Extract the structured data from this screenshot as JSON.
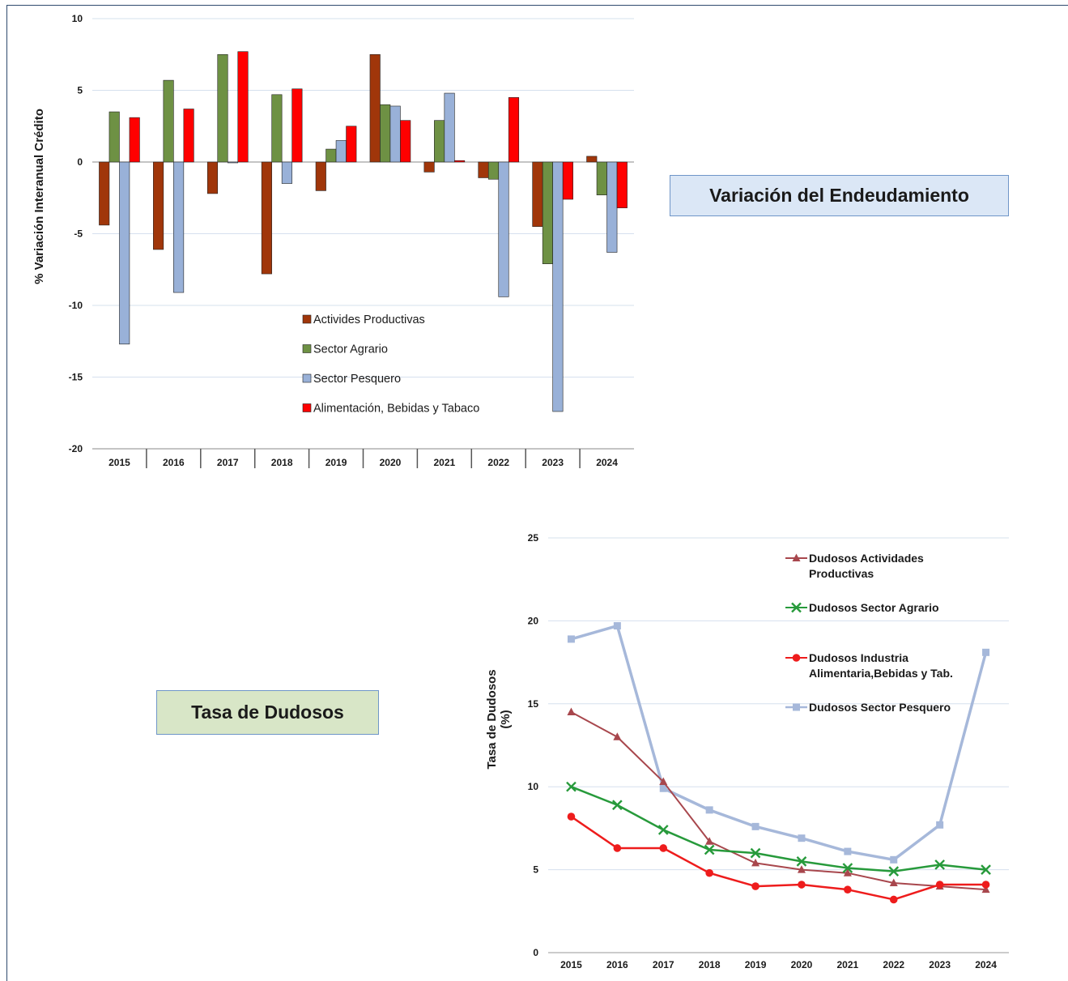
{
  "boxes": {
    "endeudamiento": "Variación del Endeudamiento",
    "dudosos": "Tasa de Dudosos"
  },
  "colors": {
    "actividades": "#a0360a",
    "agrario": "#6e9144",
    "pesquero": "#99b1d8",
    "alimentacion": "#ff0000",
    "dud_actividades": "#a8474d",
    "dud_agrario": "#279a3b",
    "dud_alimentaria": "#ee1c1c",
    "dud_pesquero": "#a6b8da",
    "grid": "#d6e0ee",
    "box_endeu_fill": "#dbe7f6",
    "box_dudosos_fill": "#d8e6c7"
  },
  "chart_data": [
    {
      "type": "bar",
      "title": "",
      "ylabel": "% Variación Interanual Crédito",
      "xlabel": "",
      "categories": [
        "2015",
        "2016",
        "2017",
        "2018",
        "2019",
        "2020",
        "2021",
        "2022",
        "2023",
        "2024"
      ],
      "ylim": [
        -20,
        10
      ],
      "yticks": [
        10,
        5,
        0,
        -5,
        -10,
        -15,
        -20
      ],
      "grid": true,
      "legend_position": "bottom-center",
      "series": [
        {
          "name": "Activides Productivas",
          "color_key": "actividades",
          "values": [
            -4.4,
            -6.1,
            -2.2,
            -7.8,
            -2.0,
            7.5,
            -0.7,
            -1.1,
            -4.5,
            0.4
          ]
        },
        {
          "name": "Sector Agrario",
          "color_key": "agrario",
          "values": [
            3.5,
            5.7,
            7.5,
            4.7,
            0.9,
            4.0,
            2.9,
            -1.2,
            -7.1,
            -2.3
          ]
        },
        {
          "name": "Sector Pesquero",
          "color_key": "pesquero",
          "values": [
            -12.7,
            -9.1,
            0.0,
            -1.5,
            1.5,
            3.9,
            4.8,
            -9.4,
            -17.4,
            -6.3
          ]
        },
        {
          "name": "Alimentación, Bebidas y Tabaco",
          "color_key": "alimentacion",
          "values": [
            3.1,
            3.7,
            7.7,
            5.1,
            2.5,
            2.9,
            0.1,
            4.5,
            -2.6,
            -3.2
          ]
        }
      ]
    },
    {
      "type": "line",
      "title": "",
      "ylabel": "Tasa de Dudosos (%)",
      "ylabel_lines": [
        "Tasa de Dudosos",
        "(%)"
      ],
      "xlabel": "",
      "x": [
        "2015",
        "2016",
        "2017",
        "2018",
        "2019",
        "2020",
        "2021",
        "2022",
        "2023",
        "2024"
      ],
      "ylim": [
        0,
        25
      ],
      "yticks": [
        25,
        20,
        15,
        10,
        5,
        0
      ],
      "grid": true,
      "legend_position": "top-right",
      "series": [
        {
          "name": "Dudosos Actividades Productivas",
          "name_lines": [
            "Dudosos Actividades",
            "Productivas"
          ],
          "color_key": "dud_actividades",
          "marker": "triangle",
          "values": [
            14.5,
            13.0,
            10.3,
            6.7,
            5.4,
            5.0,
            4.8,
            4.2,
            4.0,
            3.8
          ]
        },
        {
          "name": "Dudosos Sector Agrario",
          "name_lines": [
            "Dudosos Sector Agrario"
          ],
          "color_key": "dud_agrario",
          "marker": "x",
          "values": [
            10.0,
            8.9,
            7.4,
            6.2,
            6.0,
            5.5,
            5.1,
            4.9,
            5.3,
            5.0
          ]
        },
        {
          "name": "Dudosos Industria Alimentaria,Bebidas y Tab.",
          "name_lines": [
            "Dudosos Industria",
            "Alimentaria,Bebidas y Tab."
          ],
          "color_key": "dud_alimentaria",
          "marker": "circle",
          "values": [
            8.2,
            6.3,
            6.3,
            4.8,
            4.0,
            4.1,
            3.8,
            3.2,
            4.1,
            4.1
          ]
        },
        {
          "name": "Dudosos Sector Pesquero",
          "name_lines": [
            "Dudosos Sector Pesquero"
          ],
          "color_key": "dud_pesquero",
          "marker": "square",
          "values": [
            18.9,
            19.7,
            9.9,
            8.6,
            7.6,
            6.9,
            6.1,
            5.6,
            7.7,
            18.1
          ]
        }
      ]
    }
  ]
}
